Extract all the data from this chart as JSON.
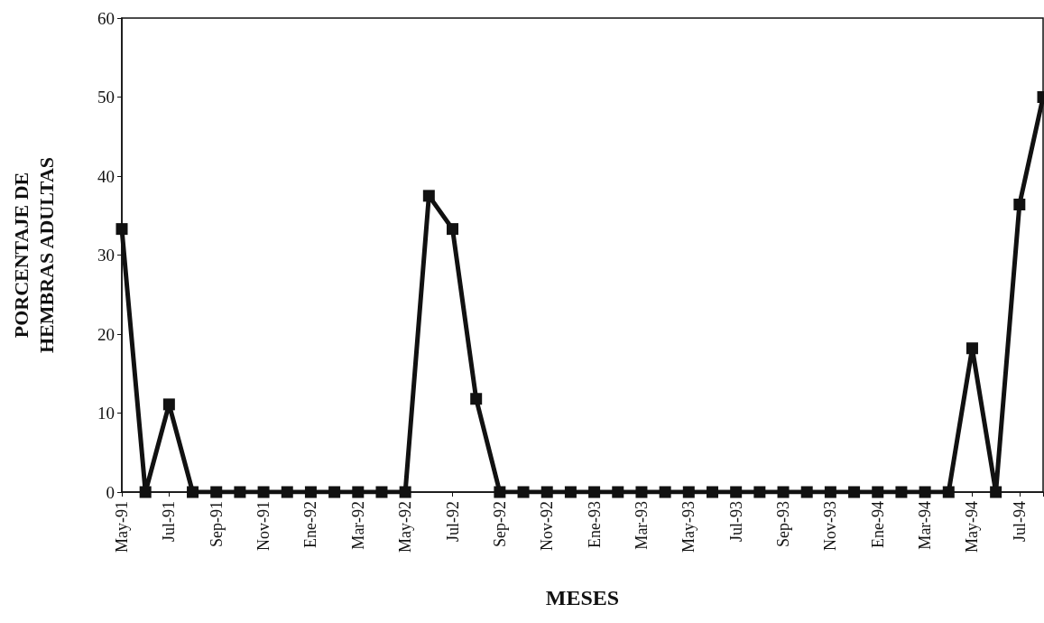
{
  "chart_data": {
    "type": "line",
    "xlabel": "MESES",
    "ylabel": "PORCENTAJE DE\nHEMBRAS ADULTAS",
    "categories": [
      "May-91",
      null,
      "Jul-91",
      null,
      "Sep-91",
      null,
      "Nov-91",
      null,
      "Ene-92",
      null,
      "Mar-92",
      null,
      "May-92",
      null,
      "Jul-92",
      null,
      "Sep-92",
      null,
      "Nov-92",
      null,
      "Ene-93",
      null,
      "Mar-93",
      null,
      "May-93",
      null,
      "Jul-93",
      null,
      "Sep-93",
      null,
      "Nov-93",
      null,
      "Ene-94",
      null,
      "Mar-94",
      null,
      "May-94",
      null,
      "Jul-94",
      null
    ],
    "series": [
      {
        "color": "#111111",
        "values": [
          33.3,
          0,
          11.1,
          0,
          0,
          0,
          0,
          0,
          0,
          0,
          0,
          0,
          0,
          37.5,
          33.3,
          11.8,
          0,
          0,
          0,
          0,
          0,
          0,
          0,
          0,
          0,
          0,
          0,
          0,
          0,
          0,
          0,
          0,
          0,
          0,
          0,
          0,
          18.2,
          0,
          36.4,
          50
        ]
      }
    ],
    "ylim": [
      0,
      60
    ],
    "yticks": [
      0,
      10,
      20,
      30,
      40,
      50,
      60
    ],
    "grid": false,
    "marker": "square",
    "line_style": "solid"
  }
}
